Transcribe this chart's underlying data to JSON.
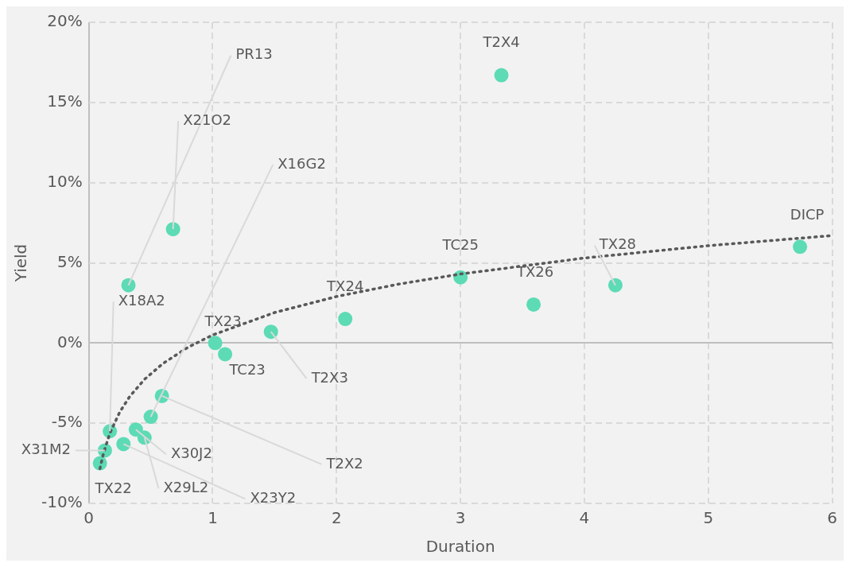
{
  "chart_data": {
    "type": "scatter",
    "xlabel": "Duration",
    "ylabel": "Yield",
    "xlim": [
      0,
      6
    ],
    "xticks": [
      0,
      1,
      2,
      3,
      4,
      5,
      6
    ],
    "ylim": [
      -10,
      20
    ],
    "yticks": [
      {
        "value": -10,
        "label": "-10%"
      },
      {
        "value": -5,
        "label": "-5%"
      },
      {
        "value": 0,
        "label": "0%"
      },
      {
        "value": 5,
        "label": "5%"
      },
      {
        "value": 10,
        "label": "10%"
      },
      {
        "value": 15,
        "label": "15%"
      },
      {
        "value": 20,
        "label": "20%"
      }
    ],
    "grid": true,
    "legend": false,
    "marker": "circle",
    "series": [
      {
        "type": "scatter",
        "color": "#5cdbb5",
        "x": [
          0.09,
          0.13,
          0.17,
          0.28,
          0.38,
          0.45,
          0.5,
          0.59,
          0.32,
          0.68,
          1.02,
          1.1,
          1.47,
          2.07,
          3.0,
          3.33,
          3.59,
          4.25,
          5.74
        ],
        "values": [
          -7.5,
          -6.7,
          -5.5,
          -6.3,
          -5.4,
          -5.9,
          -4.6,
          -3.3,
          3.6,
          7.1,
          0.0,
          -0.7,
          0.7,
          1.5,
          4.1,
          16.7,
          2.4,
          3.6,
          6.0
        ],
        "value_labels": [
          "TX22",
          "X31M2",
          "X18A2",
          "X23Y2",
          "X30J2",
          "X29L2",
          "X16G2",
          "T2X2",
          "PR13",
          "X21O2",
          "TX23",
          "TC23",
          "T2X3",
          "TX24",
          "TC25",
          "T2X4",
          "TX26",
          "TX28",
          "DICP"
        ]
      },
      {
        "type": "line",
        "color": "#595959",
        "line_style": "dotted",
        "marker": "none",
        "x": [
          0.09,
          0.12,
          0.17,
          0.25,
          0.33,
          0.45,
          0.6,
          0.8,
          1,
          1.5,
          2,
          2.5,
          3,
          4,
          5,
          6
        ],
        "values": [
          -7.83,
          -6.84,
          -5.63,
          -4.3,
          -3.34,
          -2.26,
          -1.27,
          -0.27,
          0.5,
          1.9,
          2.9,
          3.67,
          4.3,
          5.3,
          6.07,
          6.7
        ]
      }
    ]
  }
}
